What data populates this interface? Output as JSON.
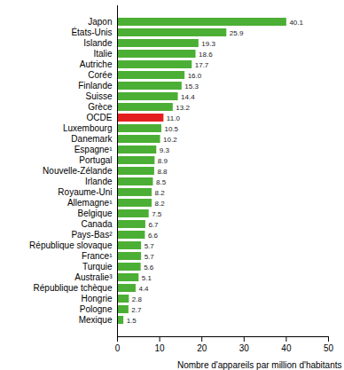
{
  "chart_data": {
    "type": "bar",
    "orientation": "horizontal",
    "x_label": "Nombre d'appareils par million d'habitants",
    "categories": [
      "Japon",
      "États-Unis",
      "Islande",
      "Italie",
      "Autriche",
      "Corée",
      "Finlande",
      "Suisse",
      "Grèce",
      "OCDE",
      "Luxembourg",
      "Danemark",
      "Espagne¹",
      "Portugal",
      "Nouvelle-Zélande",
      "Irlande",
      "Royaume-Uni",
      "Allemagne¹",
      "Belgique",
      "Canada",
      "Pays-Bas²",
      "République slovaque",
      "France¹",
      "Turquie",
      "Australie³",
      "République tchèque",
      "Hongrie",
      "Pologne",
      "Mexique"
    ],
    "values": [
      40.1,
      25.9,
      19.3,
      18.6,
      17.7,
      16.0,
      15.3,
      14.4,
      13.2,
      11.0,
      10.5,
      10.2,
      9.3,
      8.9,
      8.8,
      8.5,
      8.2,
      8.2,
      7.5,
      6.7,
      6.6,
      5.7,
      5.7,
      5.6,
      5.1,
      4.4,
      2.8,
      2.7,
      1.5
    ],
    "value_labels": [
      "40.1",
      "25.9",
      "19.3",
      "18.6",
      "17.7",
      "16.0",
      "15.3",
      "14.4",
      "13.2",
      "11.0",
      "10.5",
      "10.2",
      "9.3",
      "8.9",
      "8.8",
      "8.5",
      "8.2",
      "8.2",
      "7.5",
      "6.7",
      "6.6",
      "5.7",
      "5.7",
      "5.6",
      "5.1",
      "4.4",
      "2.8",
      "2.7",
      "1.5"
    ],
    "colors": [
      "#4caf35",
      "#4caf35",
      "#4caf35",
      "#4caf35",
      "#4caf35",
      "#4caf35",
      "#4caf35",
      "#4caf35",
      "#4caf35",
      "#e3201f",
      "#4caf35",
      "#4caf35",
      "#4caf35",
      "#4caf35",
      "#4caf35",
      "#4caf35",
      "#4caf35",
      "#4caf35",
      "#4caf35",
      "#4caf35",
      "#4caf35",
      "#4caf35",
      "#4caf35",
      "#4caf35",
      "#4caf35",
      "#4caf35",
      "#4caf35",
      "#4caf35",
      "#4caf35"
    ],
    "xlim": [
      0,
      50
    ],
    "xticks": [
      0,
      10,
      20,
      30,
      40,
      50
    ],
    "data_labels": true,
    "grid": false
  }
}
